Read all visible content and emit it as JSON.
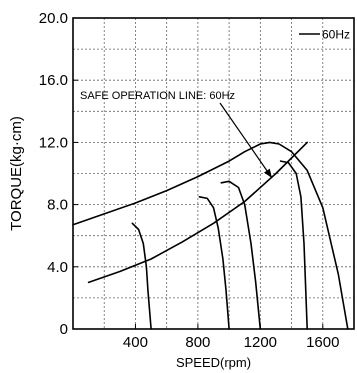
{
  "chart_data": {
    "type": "line",
    "xlabel": "SPEED(rpm)",
    "ylabel": "TORQUE(kg·cm)",
    "xlim": [
      0,
      1800
    ],
    "ylim": [
      0,
      20
    ],
    "x_ticks": [
      400,
      800,
      1200,
      1600
    ],
    "x_tick_labels": [
      "400",
      "800",
      "1200",
      "1600"
    ],
    "y_ticks": [
      0,
      4,
      8,
      12,
      16,
      20
    ],
    "y_tick_labels": [
      "0",
      "4.0",
      "8.0",
      "12.0",
      "16.0",
      "20.0"
    ],
    "grid": true,
    "grid_style": "dashed",
    "legend": {
      "label": "60Hz",
      "placement": "top-right"
    },
    "annotation": {
      "text": "SAFE OPERATION LINE: 60Hz"
    },
    "series": [
      {
        "name": "60Hz",
        "role": "safe-operation-line",
        "x": [
          100,
          300,
          500,
          700,
          900,
          1100,
          1300,
          1500
        ],
        "y": [
          3.0,
          3.7,
          4.5,
          5.6,
          6.8,
          8.2,
          10.0,
          12.0
        ]
      },
      {
        "role": "torque-curve",
        "x": [
          0,
          200,
          400,
          600,
          800,
          1000,
          1100,
          1200,
          1260,
          1320,
          1400,
          1500,
          1600,
          1700,
          1760
        ],
        "y": [
          6.7,
          7.4,
          8.1,
          8.9,
          9.8,
          10.8,
          11.4,
          11.9,
          12.0,
          11.9,
          11.4,
          10.2,
          7.8,
          3.5,
          0
        ]
      },
      {
        "role": "torque-curve",
        "x": [
          1330,
          1380,
          1430,
          1460,
          1480,
          1500
        ],
        "y": [
          10.8,
          10.7,
          10.0,
          8.5,
          5.5,
          0
        ]
      },
      {
        "role": "torque-curve",
        "x": [
          950,
          1000,
          1060,
          1100,
          1140,
          1170,
          1200
        ],
        "y": [
          9.4,
          9.5,
          9.1,
          8.0,
          5.5,
          3.0,
          0
        ]
      },
      {
        "role": "torque-curve",
        "x": [
          810,
          860,
          900,
          930,
          960,
          980,
          1000
        ],
        "y": [
          8.5,
          8.4,
          7.8,
          6.5,
          4.5,
          2.5,
          0
        ]
      },
      {
        "role": "torque-curve",
        "x": [
          380,
          420,
          450,
          470,
          480,
          500
        ],
        "y": [
          6.8,
          6.4,
          5.5,
          4.0,
          2.5,
          0
        ]
      }
    ]
  }
}
